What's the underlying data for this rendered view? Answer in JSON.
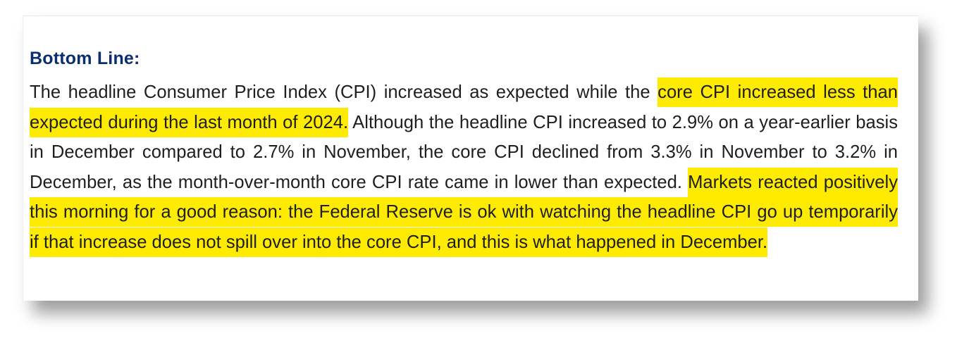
{
  "heading": "Bottom Line:",
  "paragraph": {
    "seg1": "The headline Consumer Price Index (CPI) increased as expected while the ",
    "hl1": "core CPI increased less than expected during the last month of 2024.",
    "seg2": " Although the headline CPI increased to 2.9% on a year-earlier basis in December compared to 2.7% in November, the core CPI declined from 3.3% in November to 3.2% in December, as the month-over-month core CPI rate came in lower than expected. ",
    "hl2": "Markets reacted positively this morning for a good reason: the Federal Reserve is ok with watching the headline CPI go up temporarily if that increase does not spill over into the core CPI, and this is what happened in December."
  },
  "colors": {
    "heading": "#0d2e6e",
    "highlight": "#ffeb00",
    "text": "#1f1f1f"
  }
}
